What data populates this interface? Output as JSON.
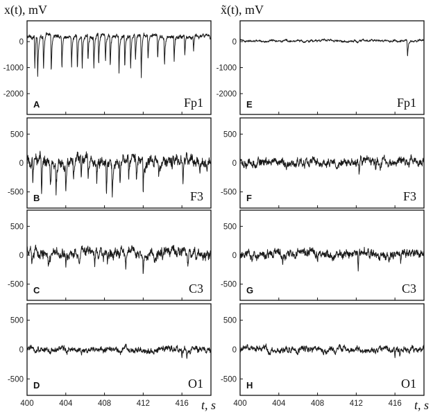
{
  "figure": {
    "left_ylabel": "x(t), mV",
    "right_ylabel": "x̃(t), mV",
    "xlabel": "t, s"
  },
  "chart_data": [
    {
      "panel": "A",
      "channel": "Fp1",
      "signal": "raw",
      "type": "line",
      "xlim": [
        400,
        419
      ],
      "ylim": [
        -2800,
        800
      ],
      "yticks": [
        0,
        -1000,
        -2000
      ],
      "xticks": [
        400,
        404,
        408,
        412,
        416
      ],
      "baseline": 200,
      "noise": 90,
      "spikes": [
        [
          400.8,
          -1250
        ],
        [
          401.1,
          -1600
        ],
        [
          401.7,
          -1350
        ],
        [
          402.5,
          -1500
        ],
        [
          403.6,
          -1300
        ],
        [
          404.6,
          -1150
        ],
        [
          405.2,
          -1350
        ],
        [
          405.7,
          -1250
        ],
        [
          406.3,
          -1000
        ],
        [
          406.9,
          -1250
        ],
        [
          407.4,
          -1300
        ],
        [
          408.1,
          -1050
        ],
        [
          408.6,
          -1250
        ],
        [
          409.5,
          -1400
        ],
        [
          410.1,
          -1300
        ],
        [
          410.7,
          -1350
        ],
        [
          411.2,
          -1000
        ],
        [
          411.8,
          -1600
        ],
        [
          412.5,
          -900
        ],
        [
          413.5,
          -900
        ],
        [
          414.2,
          -1100
        ],
        [
          415.2,
          -1000
        ],
        [
          416.3,
          -750
        ],
        [
          417.2,
          -700
        ]
      ]
    },
    {
      "panel": "B",
      "channel": "F3",
      "signal": "raw",
      "type": "line",
      "xlim": [
        400,
        419
      ],
      "ylim": [
        -780,
        780
      ],
      "yticks": [
        500,
        0,
        -500
      ],
      "xticks": [
        400,
        404,
        408,
        412,
        416
      ],
      "baseline": 30,
      "noise": 110,
      "spikes": [
        [
          400.6,
          -520
        ],
        [
          401.5,
          -620
        ],
        [
          402.4,
          -450
        ],
        [
          403.0,
          -500
        ],
        [
          404.0,
          -420
        ],
        [
          404.8,
          -380
        ],
        [
          405.6,
          -470
        ],
        [
          406.3,
          -400
        ],
        [
          407.2,
          -420
        ],
        [
          408.2,
          -600
        ],
        [
          408.8,
          -520
        ],
        [
          409.6,
          -450
        ],
        [
          410.5,
          -420
        ],
        [
          411.3,
          -380
        ],
        [
          412.0,
          -650
        ],
        [
          413.6,
          -280
        ],
        [
          415.0,
          -260
        ],
        [
          416.1,
          -300
        ]
      ]
    },
    {
      "panel": "C",
      "channel": "C3",
      "signal": "raw",
      "type": "line",
      "xlim": [
        400,
        419
      ],
      "ylim": [
        -780,
        780
      ],
      "yticks": [
        500,
        0,
        -500
      ],
      "xticks": [
        400,
        404,
        408,
        412,
        416
      ],
      "baseline": 40,
      "noise": 100,
      "spikes": [
        [
          400.5,
          -240
        ],
        [
          402.2,
          -220
        ],
        [
          404.0,
          -200
        ],
        [
          405.4,
          -200
        ],
        [
          407.0,
          -230
        ],
        [
          408.3,
          -250
        ],
        [
          410.2,
          -220
        ],
        [
          412.0,
          -330
        ],
        [
          414.0,
          -160
        ],
        [
          416.6,
          -180
        ]
      ]
    },
    {
      "panel": "D",
      "channel": "O1",
      "signal": "raw",
      "type": "line",
      "xlim": [
        400,
        419
      ],
      "ylim": [
        -780,
        780
      ],
      "yticks": [
        500,
        0,
        -500
      ],
      "xticks": [
        400,
        404,
        408,
        412,
        416
      ],
      "baseline": 0,
      "noise": 60,
      "spikes": [
        [
          416.0,
          -160
        ],
        [
          416.5,
          -170
        ]
      ]
    },
    {
      "panel": "E",
      "channel": "Fp1",
      "signal": "cleaned",
      "type": "line",
      "xlim": [
        400,
        419
      ],
      "ylim": [
        -2800,
        800
      ],
      "yticks": [
        0,
        -1000,
        -2000
      ],
      "xticks": [
        400,
        404,
        408,
        412,
        416
      ],
      "baseline": 30,
      "noise": 50,
      "spikes": [
        [
          417.3,
          -650
        ]
      ]
    },
    {
      "panel": "F",
      "channel": "F3",
      "signal": "cleaned",
      "type": "line",
      "xlim": [
        400,
        419
      ],
      "ylim": [
        -780,
        780
      ],
      "yticks": [
        500,
        0,
        -500
      ],
      "xticks": [
        400,
        404,
        408,
        412,
        416
      ],
      "baseline": 10,
      "noise": 85,
      "spikes": [
        [
          412.3,
          -250
        ],
        [
          414.0,
          -180
        ]
      ]
    },
    {
      "panel": "G",
      "channel": "C3",
      "signal": "cleaned",
      "type": "line",
      "xlim": [
        400,
        419
      ],
      "ylim": [
        -780,
        780
      ],
      "yticks": [
        500,
        0,
        -500
      ],
      "xticks": [
        400,
        404,
        408,
        412,
        416
      ],
      "baseline": 20,
      "noise": 85,
      "spikes": [
        [
          404.4,
          -200
        ],
        [
          408.0,
          -160
        ],
        [
          412.2,
          -260
        ],
        [
          416.6,
          -180
        ]
      ]
    },
    {
      "panel": "H",
      "channel": "O1",
      "signal": "cleaned",
      "type": "line",
      "xlim": [
        400,
        419
      ],
      "ylim": [
        -780,
        780
      ],
      "yticks": [
        500,
        0,
        -500
      ],
      "xticks": [
        400,
        404,
        408,
        412,
        416
      ],
      "baseline": 0,
      "noise": 60,
      "spikes": [
        [
          416.0,
          -160
        ],
        [
          416.5,
          -170
        ]
      ]
    }
  ]
}
